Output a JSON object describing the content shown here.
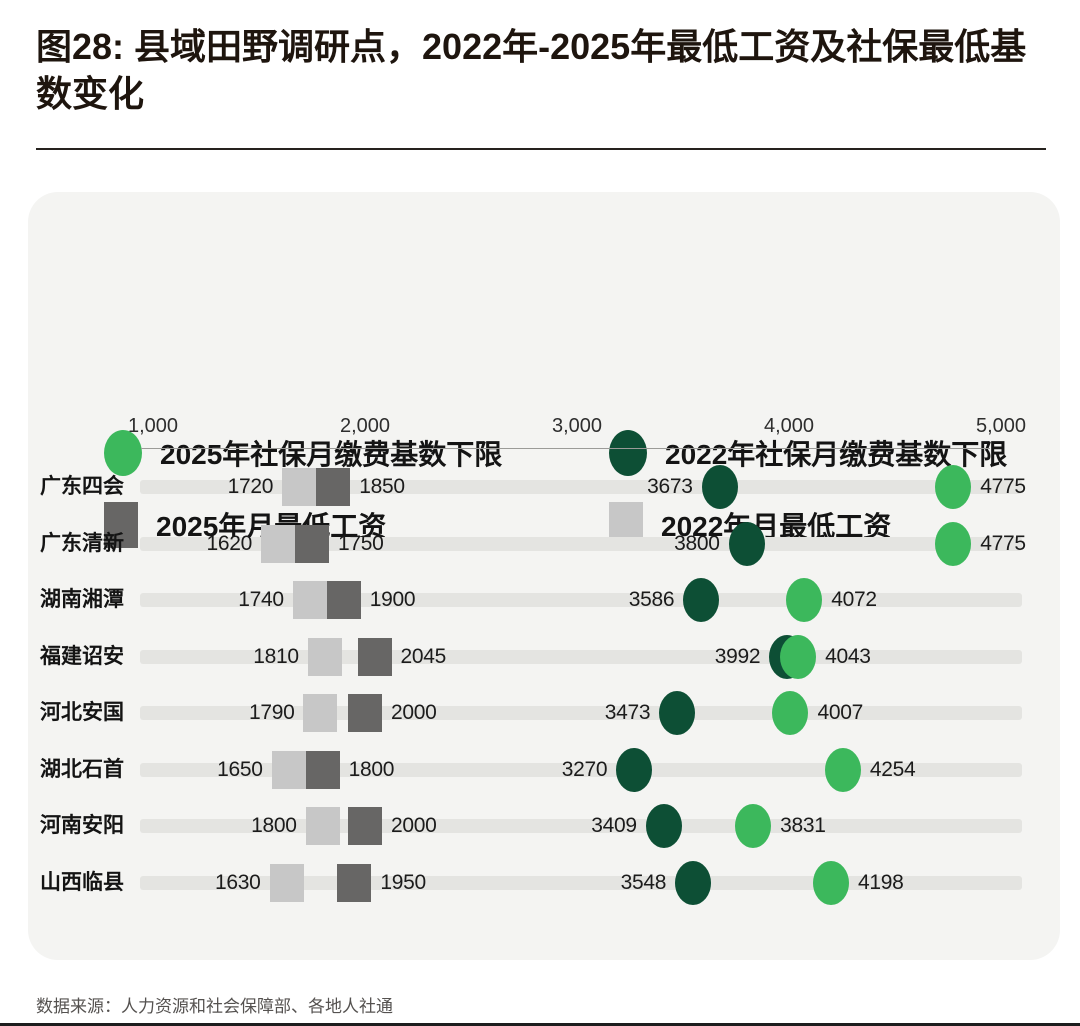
{
  "page": {
    "title": "图28: 县域田野调研点，2022年-2025年最低工资及社保最低基数变化",
    "source": "数据来源：人力资源和社会保障部、各地人社通"
  },
  "colors": {
    "ssbase_2025_green": "#3cb85c",
    "ssbase_2022_dark_green": "#0d4f35",
    "wage_2025_dark_gray": "#676665",
    "wage_2022_light_gray": "#c7c7c7",
    "card_background": "#f4f4f2",
    "row_track": "#e4e4e1"
  },
  "legend": {
    "position": "top",
    "items": [
      {
        "label": "2025年社保月缴费基数下限",
        "marker": "circle",
        "color": "#3cb85c"
      },
      {
        "label": "2022年社保月缴费基数下限",
        "marker": "circle",
        "color": "#0d4f35"
      },
      {
        "label": "2025年月最低工资",
        "marker": "square",
        "color": "#676665"
      },
      {
        "label": "2022年月最低工资",
        "marker": "square",
        "color": "#c7c7c7"
      }
    ]
  },
  "chart_data": {
    "type": "scatter",
    "subtype": "dot-plot-dumbbell",
    "title": "图28: 县域田野调研点，2022年-2025年最低工资及社保最低基数变化",
    "xlabel": "",
    "ylabel": "",
    "xlim": [
      1000,
      5000
    ],
    "x_ticks": [
      "1,000",
      "2,000",
      "3,000",
      "4,000",
      "5,000"
    ],
    "x_tick_values": [
      1000,
      2000,
      3000,
      4000,
      5000
    ],
    "grid": false,
    "legend_position": "top",
    "categories": [
      "广东四会",
      "广东清新",
      "湖南湘潭",
      "福建诏安",
      "河北安国",
      "湖北石首",
      "河南安阳",
      "山西临县"
    ],
    "series": [
      {
        "name": "2022年月最低工资",
        "marker": "square",
        "color": "#c7c7c7",
        "label_side": "left",
        "values": [
          1720,
          1620,
          1740,
          1810,
          1790,
          1650,
          1800,
          1630
        ]
      },
      {
        "name": "2025年月最低工资",
        "marker": "square",
        "color": "#676665",
        "label_side": "right",
        "values": [
          1850,
          1750,
          1900,
          2045,
          2000,
          1800,
          2000,
          1950
        ]
      },
      {
        "name": "2022年社保月缴费基数下限",
        "marker": "circle",
        "color": "#0d4f35",
        "label_side": "left",
        "values": [
          3673,
          3800,
          3586,
          3992,
          3473,
          3270,
          3409,
          3548
        ]
      },
      {
        "name": "2025年社保月缴费基数下限",
        "marker": "circle",
        "color": "#3cb85c",
        "label_side": "right",
        "values": [
          4775,
          4775,
          4072,
          4043,
          4007,
          4254,
          3831,
          4198
        ]
      }
    ]
  }
}
